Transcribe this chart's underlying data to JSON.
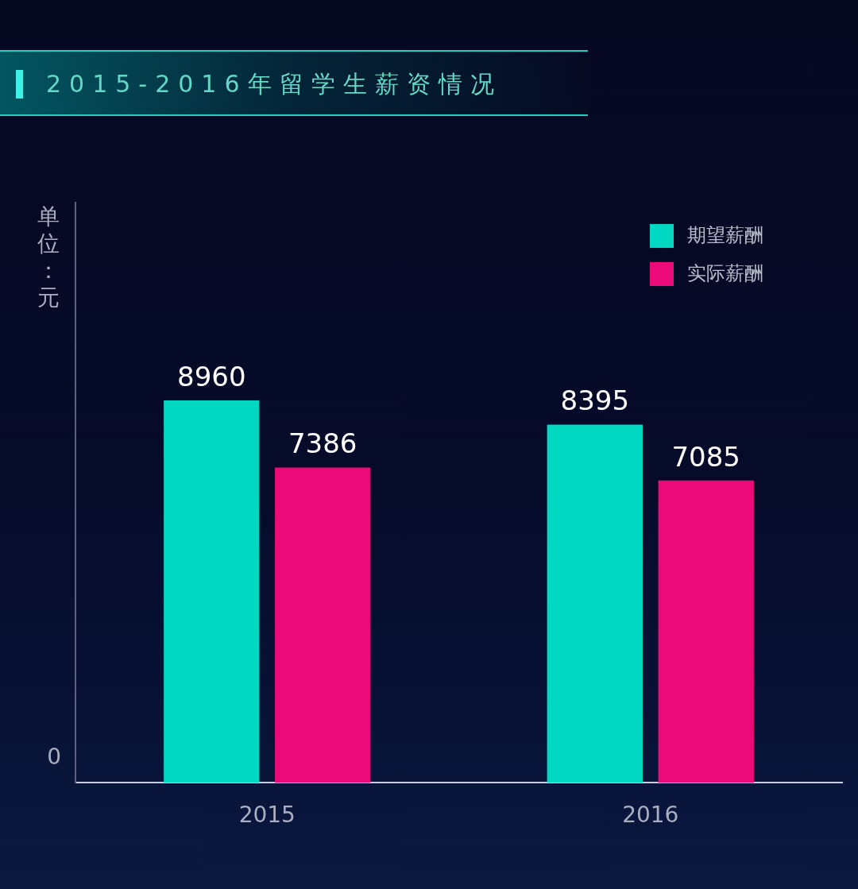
{
  "chart_data": {
    "type": "bar",
    "title": "2015-2016年留学生薪资情况",
    "ylabel": "单位：元",
    "categories": [
      "2015",
      "2016"
    ],
    "series": [
      {
        "name": "期望薪酬",
        "color": "#00d8c2",
        "values": [
          8960,
          8395
        ]
      },
      {
        "name": "实际薪酬",
        "color": "#ec0a78",
        "values": [
          7386,
          7085
        ]
      }
    ],
    "ylim": [
      0,
      13600
    ],
    "annotations": [
      "0"
    ],
    "data_labels": true,
    "legend": "top right",
    "grid": false
  }
}
